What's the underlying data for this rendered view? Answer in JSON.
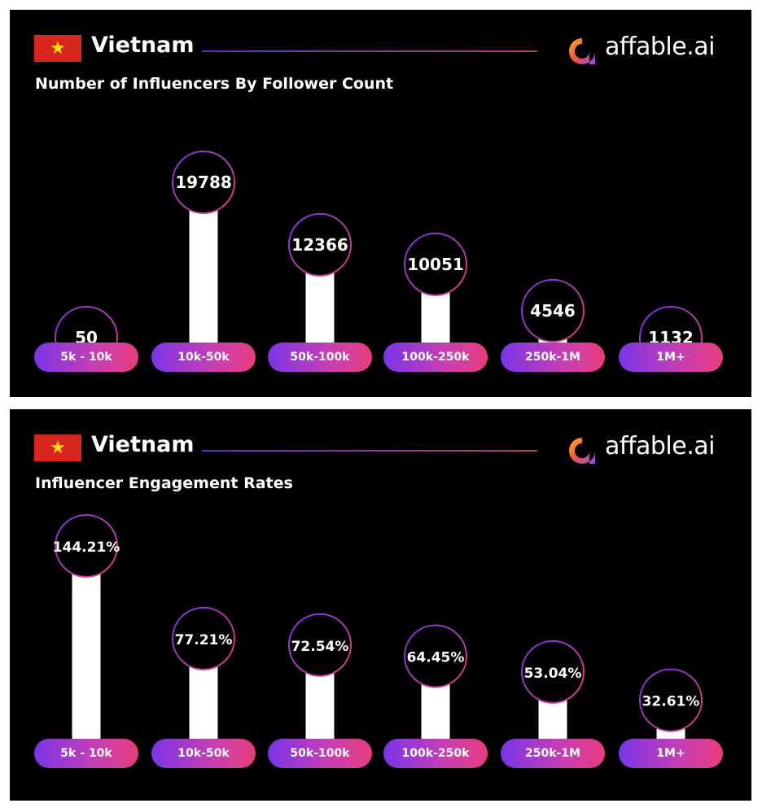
{
  "brand": {
    "name": "affable.ai"
  },
  "panels": [
    {
      "country": "Vietnam",
      "subtitle": "Number of Influencers By Follower Count"
    },
    {
      "country": "Vietnam",
      "subtitle": "Influencer Engagement Rates"
    }
  ],
  "chart_data": [
    {
      "type": "bar",
      "title": "Number of Influencers By Follower Count",
      "categories": [
        "5k - 10k",
        "10k-50k",
        "50k-100k",
        "100k-250k",
        "250k-1M",
        "1M+"
      ],
      "values": [
        50,
        19788,
        12366,
        10051,
        4546,
        1132
      ],
      "value_labels": [
        "50",
        "19788",
        "12366",
        "10051",
        "4546",
        "1132"
      ],
      "colors": {
        "bar": "#ffffff",
        "ring_start": "#7b34e8",
        "ring_end": "#e73c7a"
      }
    },
    {
      "type": "bar",
      "title": "Influencer Engagement Rates",
      "categories": [
        "5k - 10k",
        "10k-50k",
        "50k-100k",
        "100k-250k",
        "250k-1M",
        "1M+"
      ],
      "values": [
        144.21,
        77.21,
        72.54,
        64.45,
        53.04,
        32.61
      ],
      "value_labels": [
        "144.21%",
        "77.21%",
        "72.54%",
        "64.45%",
        "53.04%",
        "32.61%"
      ],
      "colors": {
        "bar": "#ffffff",
        "ring_start": "#7b34e8",
        "ring_end": "#e73c7a"
      }
    }
  ]
}
